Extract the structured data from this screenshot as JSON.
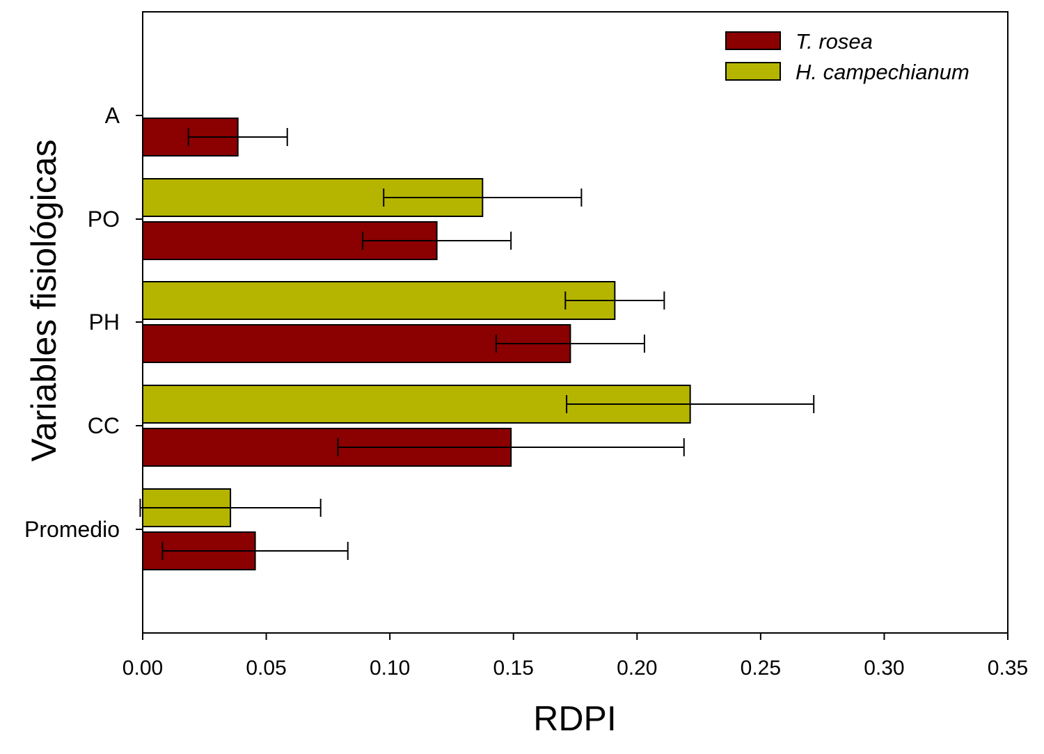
{
  "chart_data": {
    "type": "bar",
    "orientation": "horizontal",
    "title": "",
    "xlabel": "RDPI",
    "ylabel": "Variables fisiológicas",
    "xlim": [
      0,
      0.35
    ],
    "xticks": [
      0.0,
      0.05,
      0.1,
      0.15,
      0.2,
      0.25,
      0.3,
      0.35
    ],
    "xtick_labels": [
      "0.00",
      "0.05",
      "0.10",
      "0.15",
      "0.20",
      "0.25",
      "0.30",
      "0.35"
    ],
    "categories": [
      "A",
      "PO",
      "PH",
      "CC",
      "Promedio"
    ],
    "grid": false,
    "legend_position": "top-right",
    "series": [
      {
        "name": "T. rosea",
        "color": "#8b0000",
        "values": [
          0.0385,
          0.119,
          0.173,
          0.149,
          0.0455
        ],
        "errors": [
          0.02,
          0.03,
          0.03,
          0.07,
          0.0375
        ]
      },
      {
        "name": "H. campechianum",
        "color": "#b5b500",
        "values": [
          null,
          0.1375,
          0.191,
          0.2215,
          0.0355
        ],
        "errors": [
          null,
          0.04,
          0.02,
          0.05,
          0.0365
        ]
      }
    ]
  }
}
